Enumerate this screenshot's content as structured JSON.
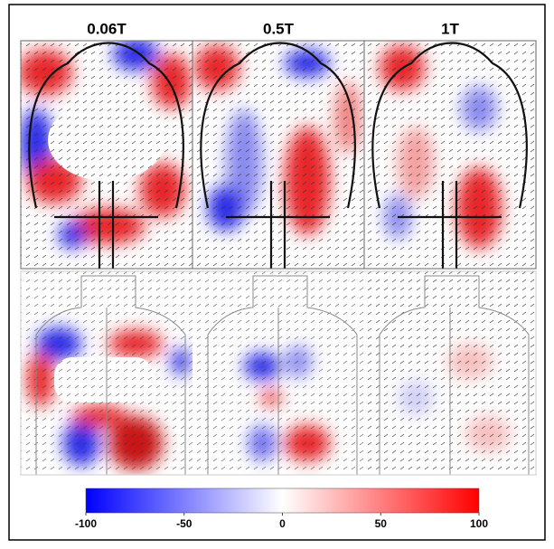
{
  "columns": [
    "0.06T",
    "0.5T",
    "1T"
  ],
  "colorbar": {
    "lim": [
      -100,
      100
    ],
    "ticks": [
      -100,
      -50,
      0,
      50,
      100
    ],
    "colors": [
      "#0000ff",
      "#ffffff",
      "#ff0000"
    ]
  }
}
